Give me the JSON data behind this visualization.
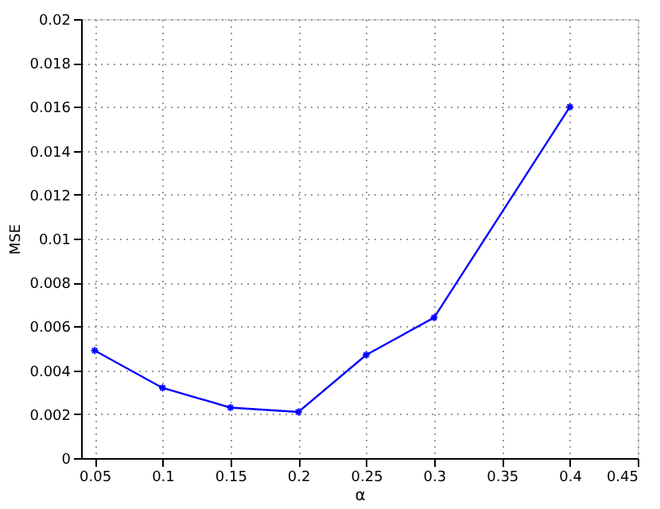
{
  "chart_data": {
    "type": "line",
    "xlabel": "α",
    "ylabel": "MSE",
    "x": [
      0.05,
      0.1,
      0.15,
      0.2,
      0.25,
      0.3,
      0.4
    ],
    "series": [
      {
        "color": "#0000ff",
        "values": [
          0.0049,
          0.0032,
          0.0023,
          0.0021,
          0.0047,
          0.0064,
          0.016
        ]
      }
    ],
    "xlim": [
      0.04,
      0.45
    ],
    "xticks": [
      0.05,
      0.1,
      0.15,
      0.2,
      0.25,
      0.3,
      0.35,
      0.4,
      0.45
    ],
    "ylim": [
      0,
      0.02
    ],
    "yticks": [
      0,
      0.002,
      0.004,
      0.006,
      0.008,
      0.01,
      0.012,
      0.014,
      0.016,
      0.018,
      0.02
    ],
    "grid": true,
    "marker": "cross",
    "line_style": "solid"
  }
}
